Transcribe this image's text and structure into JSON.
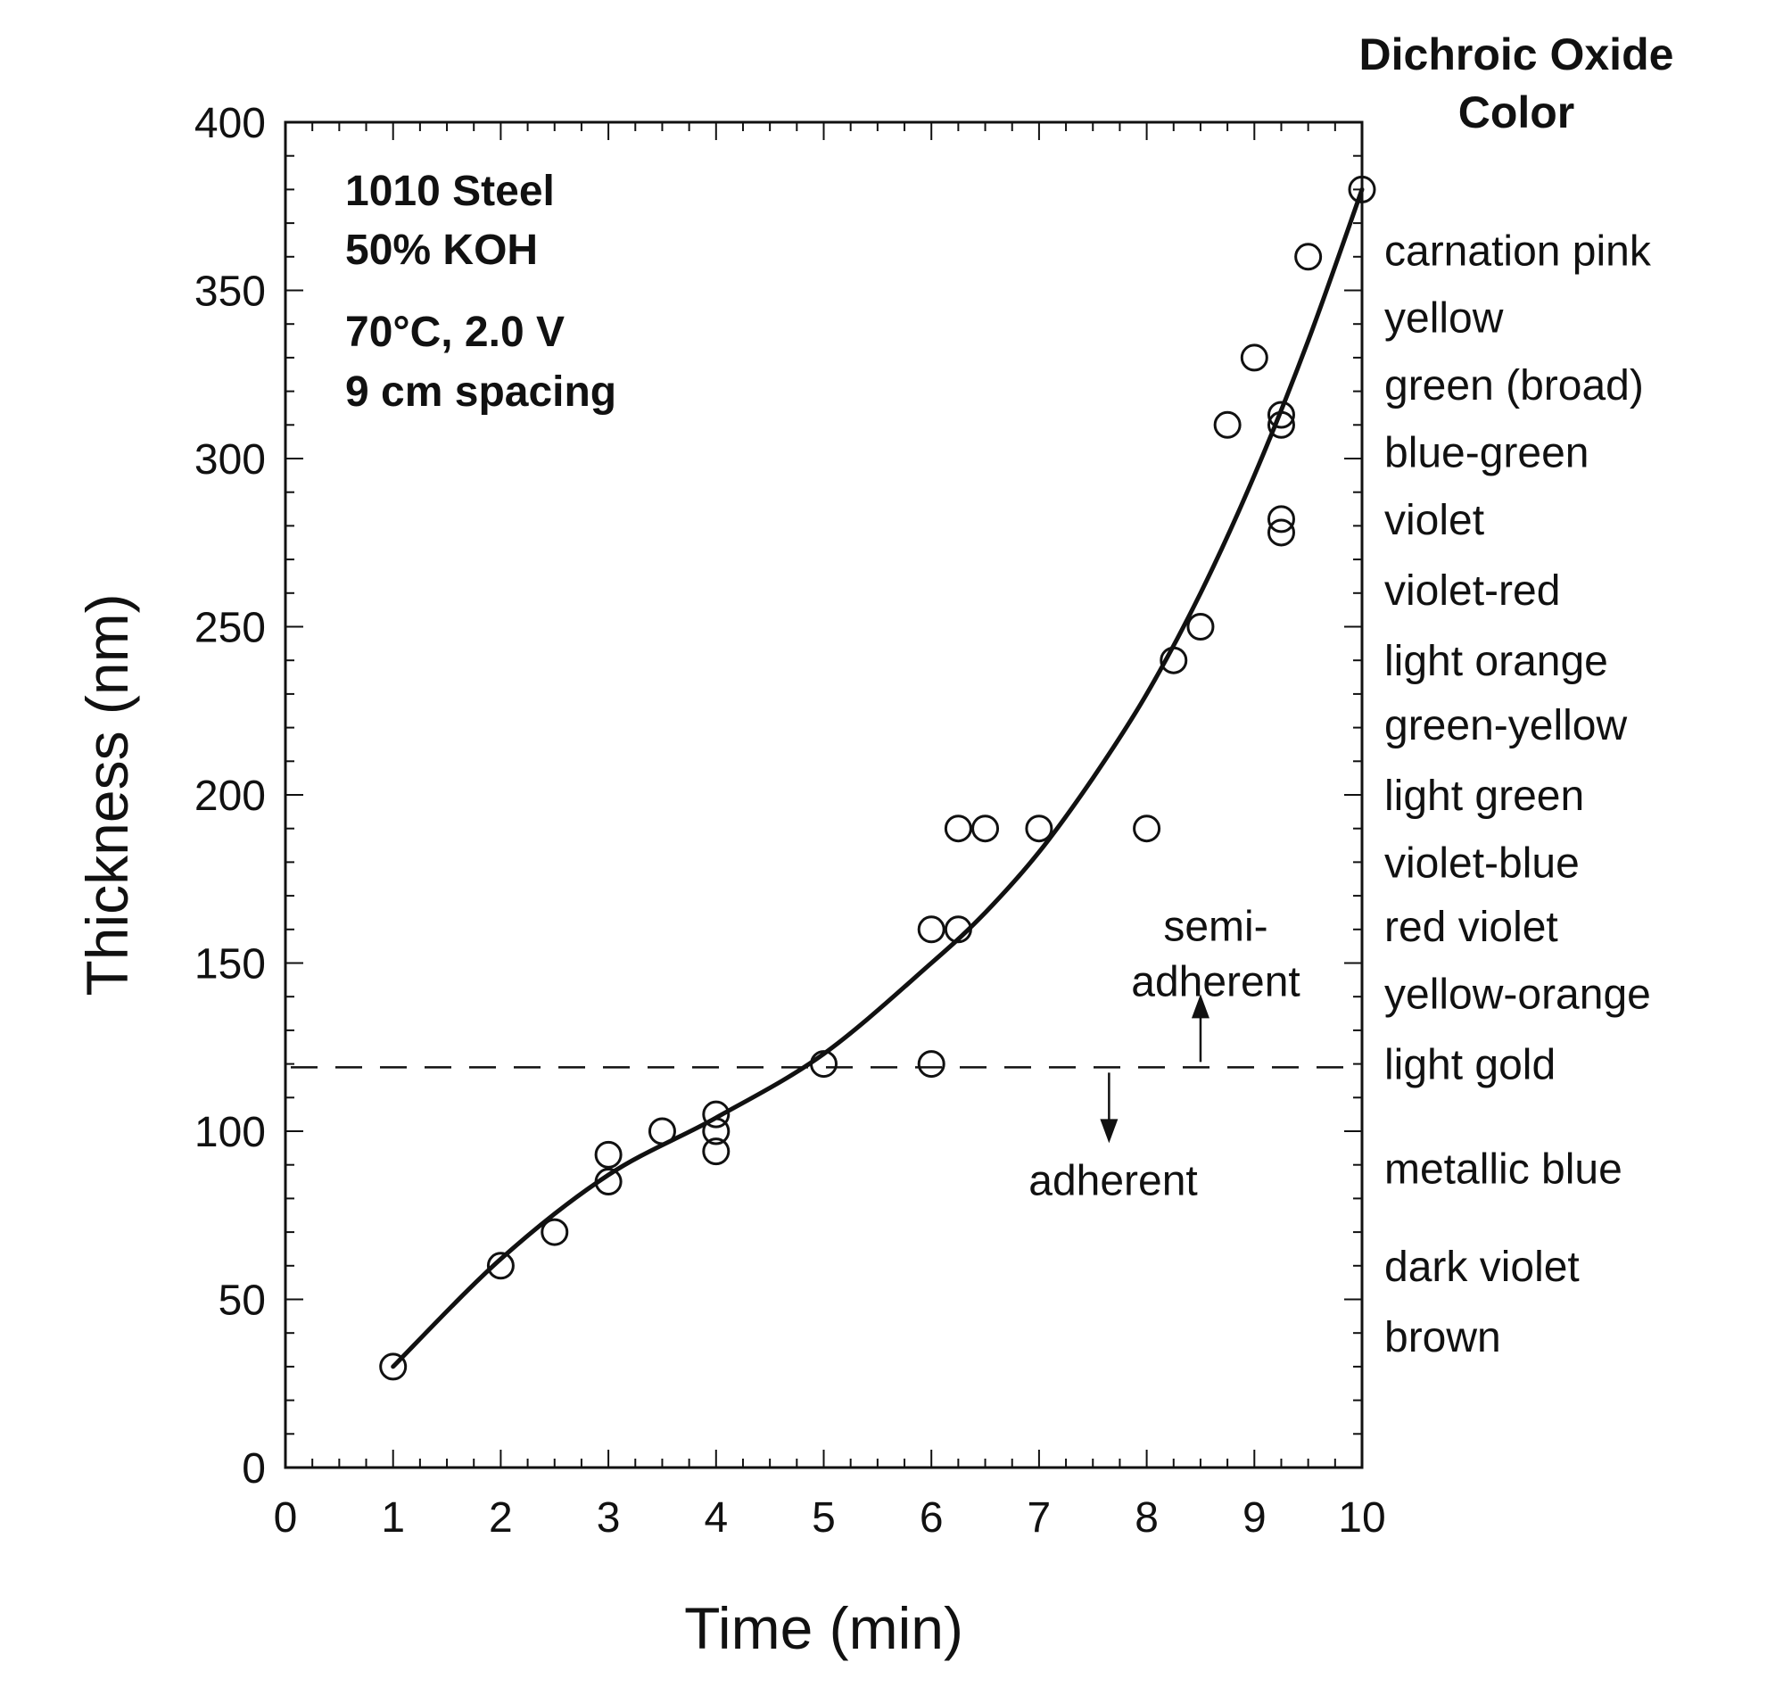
{
  "chart_data": {
    "type": "scatter",
    "xlabel": "Time (min)",
    "ylabel": "Thickness (nm)",
    "xlim": [
      0,
      10
    ],
    "ylim": [
      0,
      400
    ],
    "x_ticks": [
      0,
      1,
      2,
      3,
      4,
      5,
      6,
      7,
      8,
      9,
      10
    ],
    "y_ticks": [
      0,
      50,
      100,
      150,
      200,
      250,
      300,
      350,
      400
    ],
    "x_tick_labels": [
      "0",
      "1",
      "2",
      "3",
      "4",
      "5",
      "6",
      "7",
      "8",
      "9",
      "10"
    ],
    "y_tick_labels": [
      "0",
      "50",
      "100",
      "150",
      "200",
      "250",
      "300",
      "350",
      "400"
    ],
    "grid": false,
    "annotation_lines": [
      "1010 Steel",
      "50% KOH",
      "70°C, 2.0 V",
      "9 cm spacing"
    ],
    "points": [
      {
        "x": 1.0,
        "y": 30
      },
      {
        "x": 2.0,
        "y": 60
      },
      {
        "x": 2.5,
        "y": 70
      },
      {
        "x": 3.0,
        "y": 85
      },
      {
        "x": 3.0,
        "y": 93
      },
      {
        "x": 3.5,
        "y": 100
      },
      {
        "x": 4.0,
        "y": 94
      },
      {
        "x": 4.0,
        "y": 100
      },
      {
        "x": 4.0,
        "y": 105
      },
      {
        "x": 5.0,
        "y": 120
      },
      {
        "x": 6.0,
        "y": 120
      },
      {
        "x": 6.0,
        "y": 160
      },
      {
        "x": 6.25,
        "y": 160
      },
      {
        "x": 6.25,
        "y": 190
      },
      {
        "x": 6.5,
        "y": 190
      },
      {
        "x": 7.0,
        "y": 190
      },
      {
        "x": 8.0,
        "y": 190
      },
      {
        "x": 8.25,
        "y": 240
      },
      {
        "x": 8.5,
        "y": 250
      },
      {
        "x": 8.75,
        "y": 310
      },
      {
        "x": 9.0,
        "y": 330
      },
      {
        "x": 9.25,
        "y": 278
      },
      {
        "x": 9.25,
        "y": 282
      },
      {
        "x": 9.25,
        "y": 310
      },
      {
        "x": 9.25,
        "y": 313
      },
      {
        "x": 9.5,
        "y": 360
      },
      {
        "x": 10.0,
        "y": 380
      }
    ],
    "fit_curve": [
      {
        "x": 1.0,
        "y": 30
      },
      {
        "x": 2.0,
        "y": 62
      },
      {
        "x": 3.0,
        "y": 87
      },
      {
        "x": 4.0,
        "y": 104
      },
      {
        "x": 5.0,
        "y": 123
      },
      {
        "x": 6.0,
        "y": 150
      },
      {
        "x": 6.5,
        "y": 165
      },
      {
        "x": 7.0,
        "y": 183
      },
      {
        "x": 7.5,
        "y": 205
      },
      {
        "x": 8.0,
        "y": 230
      },
      {
        "x": 8.5,
        "y": 260
      },
      {
        "x": 9.0,
        "y": 295
      },
      {
        "x": 9.5,
        "y": 335
      },
      {
        "x": 10.0,
        "y": 380
      }
    ],
    "threshold": {
      "y": 119,
      "label_above": [
        "semi-",
        "adherent"
      ],
      "label_below": "adherent"
    },
    "side_scale": {
      "title": [
        "Dichroic Oxide",
        "Color"
      ],
      "entries": [
        {
          "label": "carnation pink",
          "y": 362
        },
        {
          "label": "yellow",
          "y": 342
        },
        {
          "label": "green (broad)",
          "y": 322
        },
        {
          "label": "blue-green",
          "y": 302
        },
        {
          "label": "violet",
          "y": 282
        },
        {
          "label": "violet-red",
          "y": 261
        },
        {
          "label": "light orange",
          "y": 240
        },
        {
          "label": "green-yellow",
          "y": 221
        },
        {
          "label": "light green",
          "y": 200
        },
        {
          "label": "violet-blue",
          "y": 180
        },
        {
          "label": "red violet",
          "y": 161
        },
        {
          "label": "yellow-orange",
          "y": 141
        },
        {
          "label": "light gold",
          "y": 120
        },
        {
          "label": "metallic blue",
          "y": 89
        },
        {
          "label": "dark violet",
          "y": 60
        },
        {
          "label": "brown",
          "y": 39
        }
      ]
    }
  }
}
